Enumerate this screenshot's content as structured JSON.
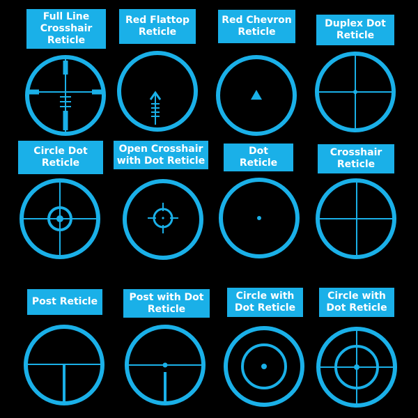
{
  "reticles": [
    {
      "label": "Full Line\nCrosshair\nReticle",
      "type": "full-line-crosshair"
    },
    {
      "label": "Red Flattop\nReticle",
      "type": "red-flattop"
    },
    {
      "label": "Red Chevron\nReticle",
      "type": "red-chevron"
    },
    {
      "label": "Duplex Dot\nReticle",
      "type": "duplex-dot"
    },
    {
      "label": "Circle Dot\nReticle",
      "type": "circle-dot"
    },
    {
      "label": "Open Crosshair\nwith Dot Reticle",
      "type": "open-crosshair-dot"
    },
    {
      "label": "Dot\nReticle",
      "type": "dot"
    },
    {
      "label": "Crosshair\nReticle",
      "type": "crosshair"
    },
    {
      "label": "Post Reticle",
      "type": "post"
    },
    {
      "label": "Post with Dot\nReticle",
      "type": "post-dot"
    },
    {
      "label": "Circle with\nDot Reticle",
      "type": "circle-with-dot"
    },
    {
      "label": "Circle with\nDot Reticle",
      "type": "circle-with-dot-crosshair"
    }
  ],
  "colors": {
    "accent": "#1ab0e8",
    "background": "#000000",
    "label_text": "#ffffff"
  }
}
